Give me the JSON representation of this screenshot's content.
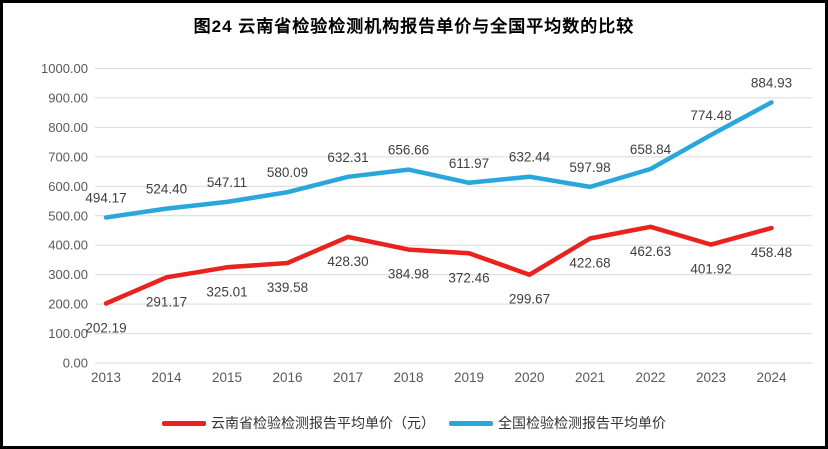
{
  "chart_data": {
    "type": "line",
    "title": "图24 云南省检验检测机构报告单价与全国平均数的比较",
    "categories": [
      "2013",
      "2014",
      "2015",
      "2016",
      "2017",
      "2018",
      "2019",
      "2020",
      "2021",
      "2022",
      "2023",
      "2024"
    ],
    "series": [
      {
        "name": "云南省检验检测报告平均单价（元）",
        "color": "#E9221E",
        "values": [
          202.19,
          291.17,
          325.01,
          339.58,
          428.3,
          384.98,
          372.46,
          299.67,
          422.68,
          462.63,
          401.92,
          458.48
        ],
        "data_label_position": "below"
      },
      {
        "name": "全国检验检测报告平均单价",
        "color": "#29A7DD",
        "values": [
          494.17,
          524.4,
          547.11,
          580.09,
          632.31,
          656.66,
          611.97,
          632.44,
          597.98,
          658.84,
          774.48,
          884.93
        ],
        "data_label_position": "above"
      }
    ],
    "ylim": [
      0,
      1000
    ],
    "ytick_step": 100,
    "ytick_labels": [
      "0.00",
      "100.00",
      "200.00",
      "300.00",
      "400.00",
      "500.00",
      "600.00",
      "700.00",
      "800.00",
      "900.00",
      "1000.00"
    ],
    "grid": true,
    "legend_position": "bottom",
    "gridline_color": "#D9D9D9",
    "axis_text_color": "#595959",
    "data_label_color": "#404040"
  }
}
